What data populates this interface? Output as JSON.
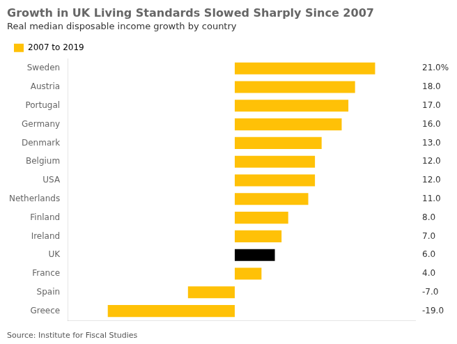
{
  "chart_data": {
    "type": "bar",
    "orientation": "horizontal",
    "title": "Growth in UK Living Standards Slowed Sharply Since 2007",
    "subtitle": "Real median disposable income growth by country",
    "annotations": [
      "Source: Institute for Fiscal Studies"
    ],
    "categories": [
      "Sweden",
      "Austria",
      "Portugal",
      "Germany",
      "Denmark",
      "Belgium",
      "USA",
      "Netherlands",
      "Finland",
      "Ireland",
      "UK",
      "France",
      "Spain",
      "Greece"
    ],
    "series": [
      {
        "name": "2007 to 2019",
        "color": "#FFC107",
        "values": [
          21.0,
          18.0,
          17.0,
          16.0,
          13.0,
          12.0,
          12.0,
          11.0,
          8.0,
          7.0,
          6.0,
          4.0,
          -7.0,
          -19.0
        ],
        "value_labels": [
          "21.0%",
          "18.0",
          "17.0",
          "16.0",
          "13.0",
          "12.0",
          "12.0",
          "11.0",
          "8.0",
          "7.0",
          "6.0",
          "4.0",
          "-7.0",
          "-19.0"
        ]
      }
    ],
    "colors": [
      "#FFC107",
      "#FFC107",
      "#FFC107",
      "#FFC107",
      "#FFC107",
      "#FFC107",
      "#FFC107",
      "#FFC107",
      "#FFC107",
      "#FFC107",
      "#000000",
      "#FFC107",
      "#FFC107",
      "#FFC107"
    ],
    "xlim": [
      -25,
      27
    ],
    "data_labels": true,
    "tick_labels": "y",
    "grid": false,
    "legend": "upper left"
  }
}
